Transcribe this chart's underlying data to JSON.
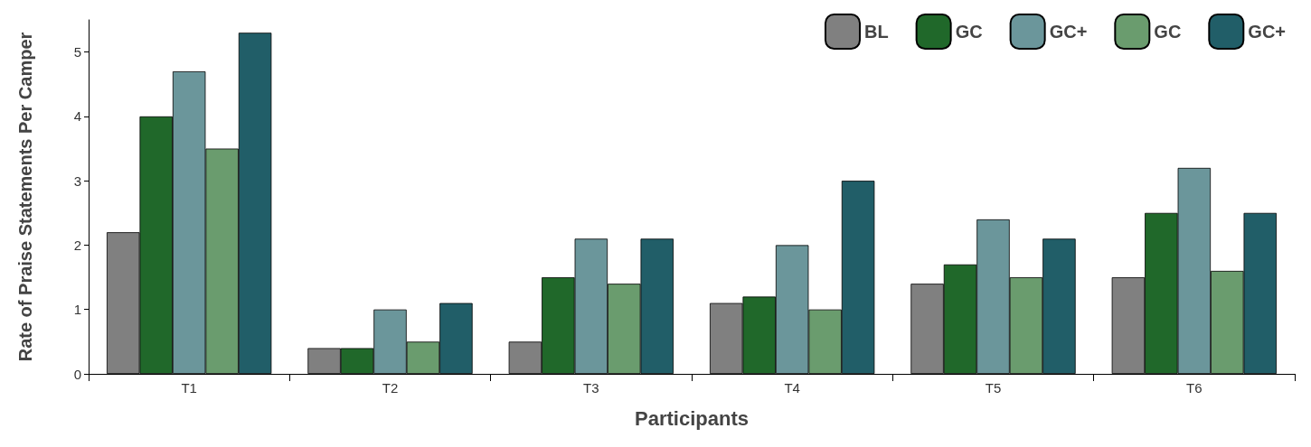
{
  "chart_data": {
    "type": "bar",
    "xlabel": "Participants",
    "ylabel": "Rate of Praise Statements Per Camper",
    "categories": [
      "T1",
      "T2",
      "T3",
      "T4",
      "T5",
      "T6"
    ],
    "series": [
      {
        "name": "BL",
        "color": "#808080",
        "values": [
          2.2,
          0.4,
          0.5,
          1.1,
          1.4,
          1.5
        ]
      },
      {
        "name": "GC",
        "color": "#20682a",
        "values": [
          4.0,
          0.4,
          1.5,
          1.2,
          1.7,
          2.5
        ]
      },
      {
        "name": "GC+",
        "color": "#6b969b",
        "values": [
          4.7,
          1.0,
          2.1,
          2.0,
          2.4,
          3.2
        ]
      },
      {
        "name": "GC",
        "color": "#6a9c6e",
        "values": [
          3.5,
          0.5,
          1.4,
          1.0,
          1.5,
          1.6
        ]
      },
      {
        "name": "GC+",
        "color": "#215e68",
        "values": [
          5.3,
          1.1,
          2.1,
          3.0,
          2.1,
          2.5
        ]
      }
    ],
    "ylim": [
      0,
      5.5
    ],
    "yticks": [
      0,
      1,
      2,
      3,
      4,
      5
    ],
    "grid": false,
    "legend": "top right"
  }
}
